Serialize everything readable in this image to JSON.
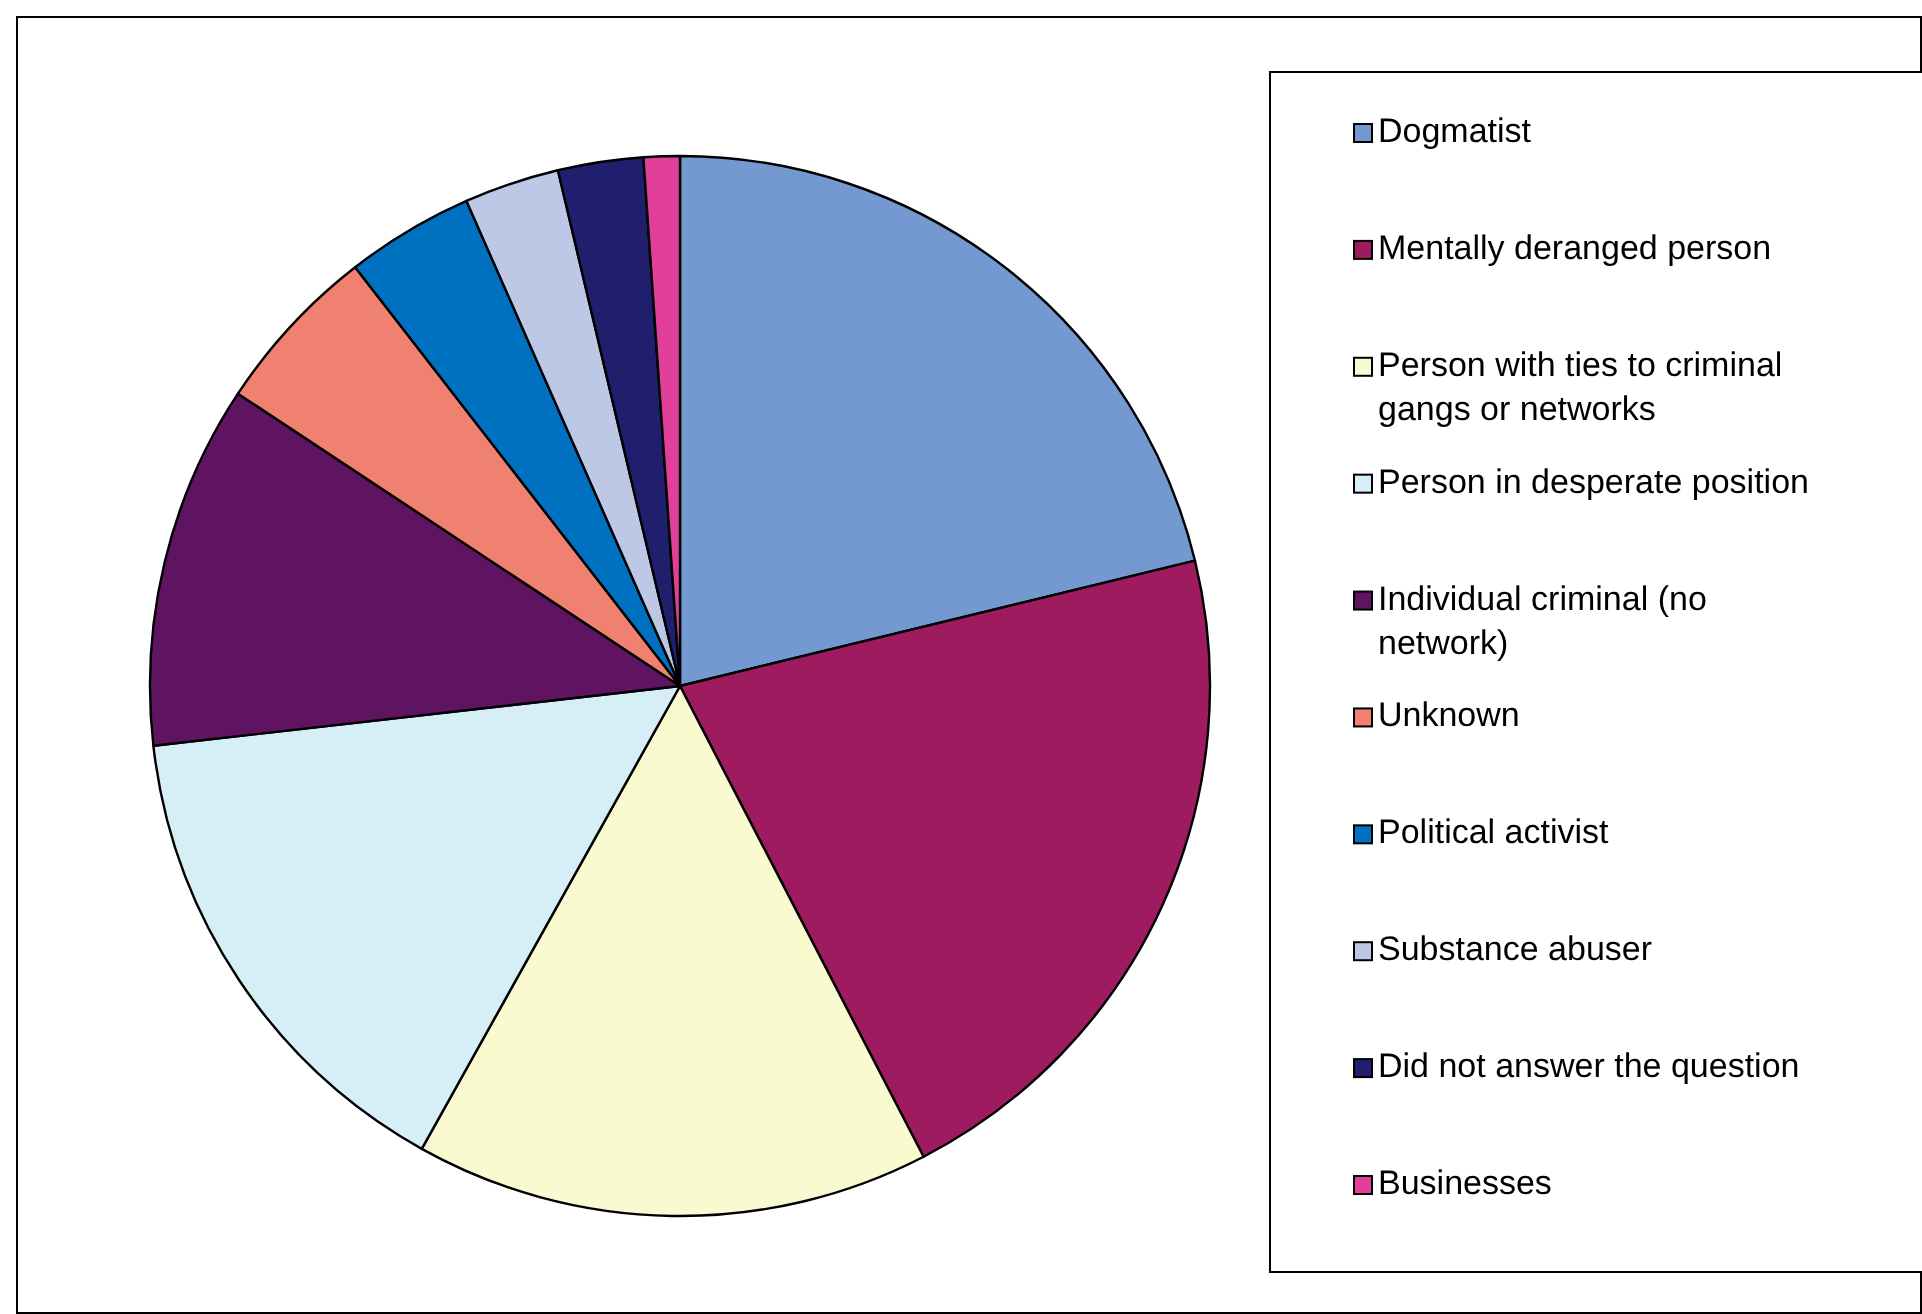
{
  "chart_data": {
    "type": "pie",
    "categories": [
      "Dogmatist",
      "Mentally deranged person",
      "Person with ties to criminal gangs or networks",
      "Person in desperate position",
      "Individual criminal (no network)",
      "Unknown",
      "Political activist",
      "Substance abuser",
      "Did not answer the question",
      "Businesses"
    ],
    "values": [
      21.2,
      21.2,
      15.7,
      15.1,
      11.1,
      5.2,
      3.9,
      2.9,
      2.6,
      1.1
    ],
    "colors": [
      "#7399d0",
      "#9e1b5f",
      "#fafad0",
      "#d6eef5",
      "#5f1462",
      "#f08070",
      "#0070c0",
      "#bdc8e6",
      "#1f1f6e",
      "#e0409a"
    ],
    "legend": "right"
  }
}
